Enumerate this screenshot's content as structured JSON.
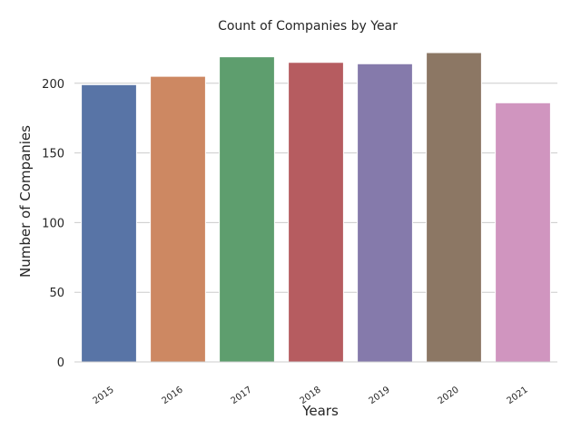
{
  "chart_data": {
    "type": "bar",
    "title": "Count of Companies by Year",
    "xlabel": "Years",
    "ylabel": "Number of Companies",
    "categories": [
      "2015",
      "2016",
      "2017",
      "2018",
      "2019",
      "2020",
      "2021"
    ],
    "values": [
      199,
      205,
      219,
      215,
      214,
      222,
      186
    ],
    "ylim": [
      0,
      222
    ],
    "yticks": [
      "0",
      "50",
      "100",
      "150",
      "200"
    ],
    "grid": "horizontal",
    "colors": [
      "#5874a6",
      "#cd8862",
      "#5e9e6e",
      "#b65c60",
      "#857aab",
      "#8c7764",
      "#d095bf"
    ],
    "gridline_color": "#cccccc",
    "text_color": "#262626"
  }
}
